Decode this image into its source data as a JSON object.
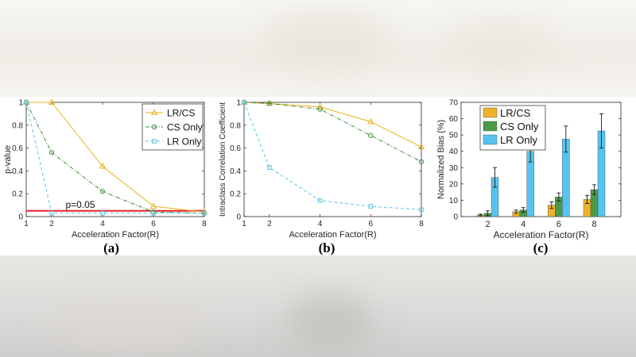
{
  "chart_data": [
    {
      "id": "a",
      "type": "line",
      "caption": "(a)",
      "xlabel": "Acceleration Factor(R)",
      "ylabel": "p-value",
      "xlim": [
        1,
        8
      ],
      "ylim": [
        0,
        1
      ],
      "xticks": [
        1,
        2,
        4,
        6,
        8
      ],
      "yticks": [
        0,
        0.2,
        0.4,
        0.6,
        0.8,
        1
      ],
      "yticklabels": [
        "0",
        "0.2",
        "0.4",
        "0.6",
        "0.8",
        "1"
      ],
      "legend_position": "top-right",
      "threshold": {
        "value": 0.05,
        "label": "p=0.05",
        "color": "#e8202a"
      },
      "series": [
        {
          "name": "LR/CS",
          "color": "#e8b11c",
          "marker": "triangle",
          "dash": "solid",
          "x": [
            1,
            2,
            4,
            6,
            8
          ],
          "y": [
            1.0,
            1.0,
            0.44,
            0.09,
            0.04
          ]
        },
        {
          "name": "CS Only",
          "color": "#3f8f3a",
          "marker": "circle",
          "dash": "dashdot",
          "x": [
            1,
            2,
            4,
            6,
            8
          ],
          "y": [
            1.0,
            0.56,
            0.22,
            0.04,
            0.03
          ]
        },
        {
          "name": "LR Only",
          "color": "#5fc3e8",
          "marker": "square",
          "dash": "dashed",
          "x": [
            1,
            2,
            4,
            6,
            8
          ],
          "y": [
            1.0,
            0.03,
            0.03,
            0.03,
            0.03
          ]
        }
      ]
    },
    {
      "id": "b",
      "type": "line",
      "caption": "(b)",
      "xlabel": "Acceleration Factor(R)",
      "ylabel": "Intraclass Correlation Coefficient",
      "xlim": [
        1,
        8
      ],
      "ylim": [
        0,
        1
      ],
      "xticks": [
        1,
        2,
        4,
        6,
        8
      ],
      "yticks": [
        0,
        0.2,
        0.4,
        0.6,
        0.8,
        1
      ],
      "yticklabels": [
        "0",
        "0.2",
        "0.4",
        "0.6",
        "0.8",
        "1"
      ],
      "series": [
        {
          "name": "LR/CS",
          "color": "#e8b11c",
          "marker": "triangle",
          "dash": "solid",
          "x": [
            1,
            2,
            4,
            6,
            8
          ],
          "y": [
            1.0,
            0.99,
            0.96,
            0.83,
            0.61
          ]
        },
        {
          "name": "CS Only",
          "color": "#3f8f3a",
          "marker": "circle",
          "dash": "dashdot",
          "x": [
            1,
            2,
            4,
            6,
            8
          ],
          "y": [
            1.0,
            0.99,
            0.94,
            0.71,
            0.48
          ]
        },
        {
          "name": "LR Only",
          "color": "#5fc3e8",
          "marker": "square",
          "dash": "dashed",
          "x": [
            1,
            2,
            4,
            6,
            8
          ],
          "y": [
            1.0,
            0.43,
            0.14,
            0.09,
            0.06
          ]
        }
      ]
    },
    {
      "id": "c",
      "type": "bar",
      "caption": "(c)",
      "xlabel": "Acceleration Factor(R)",
      "ylabel": "Normalized Bias (%)",
      "categories": [
        "2",
        "4",
        "6",
        "8"
      ],
      "ylim": [
        0,
        70
      ],
      "yticks": [
        0,
        10,
        20,
        30,
        40,
        50,
        60,
        70
      ],
      "legend_position": "top-left",
      "series": [
        {
          "name": "LR/CS",
          "color": "#eeb32a",
          "values": [
            1,
            3,
            7,
            10.5
          ],
          "errors": [
            0.5,
            1,
            2,
            2.5
          ]
        },
        {
          "name": "CS Only",
          "color": "#4a9b49",
          "values": [
            2,
            4,
            12,
            16.5
          ],
          "errors": [
            1.5,
            1.5,
            2.5,
            3
          ]
        },
        {
          "name": "LR Only",
          "color": "#56c4ef",
          "values": [
            24,
            40,
            47.5,
            52.5
          ],
          "errors": [
            6,
            6.5,
            8,
            10.5
          ]
        }
      ]
    }
  ]
}
